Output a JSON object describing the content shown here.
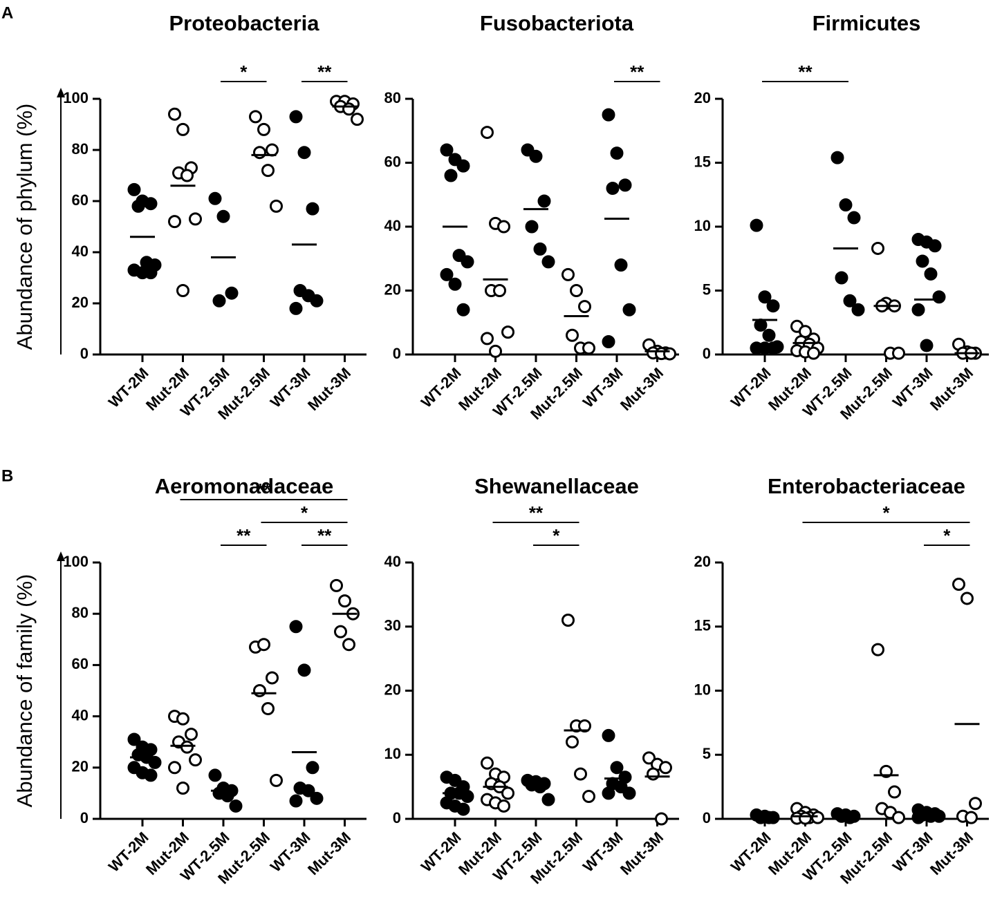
{
  "panels": [
    {
      "label": "A",
      "ylabel": "Abundance of phylum (%)"
    },
    {
      "label": "B",
      "ylabel": "Abundance of family (%)"
    }
  ],
  "chart_data": [
    {
      "type": "strip",
      "title": "Proteobacteria",
      "categories": [
        "WT-2M",
        "Mut-2M",
        "WT-2.5M",
        "Mut-2.5M",
        "WT-3M",
        "Mut-3M"
      ],
      "fills": [
        "#000000",
        "#ffffff",
        "#000000",
        "#ffffff",
        "#000000",
        "#ffffff"
      ],
      "values": [
        [
          64.5,
          60,
          59,
          58,
          36,
          35,
          33,
          32,
          32
        ],
        [
          94,
          88,
          73,
          71,
          70,
          53,
          52,
          25
        ],
        [
          61,
          54,
          24,
          21
        ],
        [
          93,
          88,
          80,
          79,
          72,
          58
        ],
        [
          93,
          79,
          57,
          25,
          23,
          21,
          18
        ],
        [
          99,
          99,
          98,
          97,
          96,
          92
        ]
      ],
      "means": [
        46,
        66,
        38,
        78,
        43,
        97
      ],
      "ylim": [
        0,
        100
      ],
      "yticks": [
        0,
        20,
        40,
        60,
        80,
        100
      ],
      "brackets": [
        {
          "between": [
            "WT-2.5M",
            "Mut-2.5M"
          ],
          "label": "*"
        },
        {
          "between": [
            "WT-3M",
            "Mut-3M"
          ],
          "label": "**"
        }
      ]
    },
    {
      "type": "strip",
      "title": "Fusobacteriota",
      "categories": [
        "WT-2M",
        "Mut-2M",
        "WT-2.5M",
        "Mut-2.5M",
        "WT-3M",
        "Mut-3M"
      ],
      "fills": [
        "#000000",
        "#ffffff",
        "#000000",
        "#ffffff",
        "#000000",
        "#ffffff"
      ],
      "values": [
        [
          64,
          61,
          59,
          56,
          31,
          29,
          25,
          22,
          14
        ],
        [
          69.5,
          41,
          40,
          20,
          20,
          7,
          5,
          1
        ],
        [
          64,
          62,
          48,
          40,
          33,
          29
        ],
        [
          25,
          20,
          15,
          6,
          2,
          2
        ],
        [
          75,
          63,
          53,
          52,
          28,
          14,
          4
        ],
        [
          3,
          1,
          0.5,
          0.5,
          0.3,
          0.2
        ]
      ],
      "means": [
        40,
        23.5,
        45.5,
        12,
        42.5,
        1
      ],
      "ylim": [
        0,
        80
      ],
      "yticks": [
        0,
        20,
        40,
        60,
        80
      ],
      "brackets": [
        {
          "between": [
            "WT-3M",
            "Mut-3M"
          ],
          "label": "**"
        }
      ]
    },
    {
      "type": "strip",
      "title": "Firmicutes",
      "categories": [
        "WT-2M",
        "Mut-2M",
        "WT-2.5M",
        "Mut-2.5M",
        "WT-3M",
        "Mut-3M"
      ],
      "fills": [
        "#000000",
        "#ffffff",
        "#000000",
        "#ffffff",
        "#000000",
        "#ffffff"
      ],
      "values": [
        [
          10.1,
          4.5,
          3.8,
          2.3,
          1.5,
          0.6,
          0.5,
          0.5,
          0.5
        ],
        [
          2.2,
          1.8,
          1.2,
          1.0,
          0.8,
          0.5,
          0.3,
          0.2,
          0.1
        ],
        [
          15.4,
          11.7,
          10.7,
          6,
          4.2,
          3.5
        ],
        [
          8.3,
          4,
          3.8,
          3.8,
          0.1,
          0.1
        ],
        [
          9,
          8.8,
          8.5,
          7.3,
          6.3,
          4.5,
          3.5,
          0.7
        ],
        [
          0.8,
          0.2,
          0.1,
          0.1,
          0.1
        ]
      ],
      "means": [
        2.7,
        0.9,
        8.3,
        3.8,
        4.3,
        0.1
      ],
      "ylim": [
        0,
        20
      ],
      "yticks": [
        0,
        5,
        10,
        15,
        20
      ],
      "brackets": [
        {
          "between": [
            "WT-2M",
            "WT-2.5M"
          ],
          "label": "**"
        }
      ]
    },
    {
      "type": "strip",
      "title": "Aeromonadaceae",
      "categories": [
        "WT-2M",
        "Mut-2M",
        "WT-2.5M",
        "Mut-2.5M",
        "WT-3M",
        "Mut-3M"
      ],
      "fills": [
        "#000000",
        "#ffffff",
        "#000000",
        "#ffffff",
        "#000000",
        "#ffffff"
      ],
      "values": [
        [
          31,
          28,
          27,
          25,
          24,
          22,
          20,
          18,
          17
        ],
        [
          40,
          39,
          33,
          30,
          28,
          23,
          20,
          12
        ],
        [
          17,
          12,
          11,
          10,
          9,
          5
        ],
        [
          67,
          68,
          55,
          50,
          43,
          15
        ],
        [
          75,
          58,
          20,
          12,
          11,
          8,
          7
        ],
        [
          91,
          85,
          80,
          73,
          68
        ]
      ],
      "means": [
        24,
        28.5,
        11,
        49,
        26,
        80
      ],
      "ylim": [
        0,
        100
      ],
      "yticks": [
        0,
        20,
        40,
        60,
        80,
        100
      ],
      "brackets": [
        {
          "between": [
            "WT-2.5M",
            "Mut-2.5M"
          ],
          "label": "**"
        },
        {
          "between": [
            "WT-3M",
            "Mut-3M"
          ],
          "label": "**"
        },
        {
          "between": [
            "Mut-2.5M",
            "Mut-3M"
          ],
          "label": "*"
        },
        {
          "between": [
            "Mut-2M",
            "Mut-3M"
          ],
          "label": "**"
        }
      ]
    },
    {
      "type": "strip",
      "title": "Shewanellaceae",
      "categories": [
        "WT-2M",
        "Mut-2M",
        "WT-2.5M",
        "Mut-2.5M",
        "WT-3M",
        "Mut-3M"
      ],
      "fills": [
        "#000000",
        "#ffffff",
        "#000000",
        "#ffffff",
        "#000000",
        "#ffffff"
      ],
      "values": [
        [
          6.5,
          6,
          5,
          4,
          4,
          3.5,
          2.5,
          2,
          1.5
        ],
        [
          8.7,
          7,
          6.5,
          5.5,
          5,
          4,
          3,
          2.5,
          2
        ],
        [
          6,
          5.8,
          5.5,
          5.3,
          5,
          3
        ],
        [
          31,
          14.5,
          14.5,
          12,
          7,
          3.5
        ],
        [
          13,
          8,
          6.5,
          5.5,
          5,
          4,
          4
        ],
        [
          9.5,
          8.5,
          8,
          7,
          0
        ]
      ],
      "means": [
        4,
        5,
        5.4,
        13.8,
        6.3,
        6.6
      ],
      "ylim": [
        0,
        40
      ],
      "yticks": [
        0,
        10,
        20,
        30,
        40
      ],
      "brackets": [
        {
          "between": [
            "WT-2.5M",
            "Mut-2.5M"
          ],
          "label": "*"
        },
        {
          "between": [
            "Mut-2M",
            "Mut-2.5M"
          ],
          "label": "**"
        }
      ]
    },
    {
      "type": "strip",
      "title": "Enterobacteriaceae",
      "categories": [
        "WT-2M",
        "Mut-2M",
        "WT-2.5M",
        "Mut-2.5M",
        "WT-3M",
        "Mut-3M"
      ],
      "fills": [
        "#000000",
        "#ffffff",
        "#000000",
        "#ffffff",
        "#000000",
        "#ffffff"
      ],
      "values": [
        [
          0.3,
          0.2,
          0.1,
          0.1,
          0.1
        ],
        [
          0.8,
          0.5,
          0.3,
          0.2,
          0.1,
          0.1,
          0.05,
          0.05
        ],
        [
          0.4,
          0.3,
          0.2,
          0.2,
          0.1
        ],
        [
          13.2,
          3.7,
          2.1,
          0.8,
          0.5,
          0.1
        ],
        [
          0.7,
          0.5,
          0.4,
          0.3,
          0.2,
          0.2,
          0.1
        ],
        [
          18.3,
          17.2,
          1.2,
          0.2,
          0.1
        ]
      ],
      "means": [
        0.1,
        0.2,
        0.2,
        3.4,
        0.4,
        7.4
      ],
      "ylim": [
        0,
        20
      ],
      "yticks": [
        0,
        5,
        10,
        15,
        20
      ],
      "brackets": [
        {
          "between": [
            "WT-3M",
            "Mut-3M"
          ],
          "label": "*"
        },
        {
          "between": [
            "Mut-2M",
            "Mut-3M"
          ],
          "label": "*"
        }
      ]
    }
  ]
}
